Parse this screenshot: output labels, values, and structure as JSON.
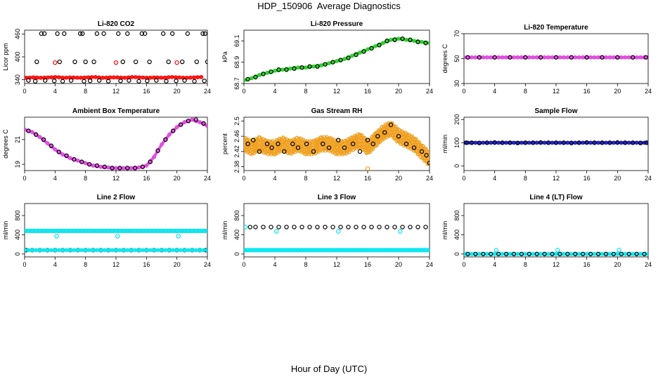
{
  "page": {
    "title": "HDP_150906  Average Diagnostics",
    "xlabel": "Hour of Day (UTC)"
  },
  "colors": {
    "black": "#000000",
    "red": "#ff0000",
    "green": "#22cc22",
    "magenta": "#e040e0",
    "orange": "#f0a020",
    "blue": "#1010c0",
    "cyan": "#00e5ee"
  },
  "chart_data": [
    {
      "type": "scatter",
      "title": "Li-820 CO2",
      "xlabel": "",
      "ylabel": "Licor ppm",
      "xlim": [
        0,
        24
      ],
      "ylim": [
        330,
        470
      ],
      "xticks": [
        0,
        4,
        8,
        12,
        16,
        20,
        24
      ],
      "yticks": [
        340,
        400,
        460
      ],
      "series": [
        {
          "color": "#ff0000",
          "x": [
            0.2,
            1.2,
            2.2,
            3.2,
            4.2,
            5.2,
            6.2,
            7.2,
            8.2,
            9.2,
            10.2,
            11.2,
            12.2,
            13.2,
            14.2,
            15.2,
            16.2,
            17.2,
            18.2,
            19.2,
            20.2,
            21.2,
            22.2,
            23.2
          ],
          "y": [
            345,
            346,
            345,
            346,
            347,
            345,
            346,
            345,
            346,
            347,
            345,
            346,
            346,
            345,
            347,
            346,
            345,
            346,
            345,
            347,
            346,
            345,
            346,
            347
          ],
          "line": true
        },
        {
          "color": "#ff0000",
          "x": [
            4.0,
            12.0,
            20.0
          ],
          "y": [
            385,
            385,
            385
          ]
        },
        {
          "color": "#000000",
          "x": [
            2.2,
            2.6,
            4.3,
            5.2,
            7.3,
            7.6,
            9.5,
            10.4,
            12.3,
            13.5,
            15.4,
            15.8,
            18.2,
            19.4,
            21.4,
            23.4,
            23.7
          ],
          "y": [
            461,
            461,
            461,
            461,
            461,
            461,
            461,
            461,
            461,
            461,
            461,
            461,
            461,
            461,
            461,
            461,
            461
          ]
        },
        {
          "color": "#000000",
          "x": [
            1.6,
            4.6,
            6.6,
            8.0,
            9.1,
            12.9,
            14.6,
            16.4,
            18.9,
            20.7,
            22.6,
            24.0
          ],
          "y": [
            387,
            387,
            387,
            387,
            387,
            387,
            387,
            387,
            387,
            387,
            387,
            387
          ]
        },
        {
          "color": "#000000",
          "x": [
            0.5,
            1.4,
            2.7,
            3.9,
            5.0,
            6.1,
            7.8,
            8.6,
            9.8,
            11.0,
            12.6,
            13.7,
            15.0,
            16.1,
            17.3,
            18.6,
            19.9,
            21.0,
            22.3,
            23.6
          ],
          "y": [
            338,
            336,
            338,
            337,
            336,
            338,
            336,
            337,
            338,
            336,
            337,
            338,
            336,
            337,
            338,
            336,
            337,
            338,
            336,
            337
          ]
        }
      ]
    },
    {
      "type": "scatter",
      "title": "Li-820 Pressure",
      "xlabel": "",
      "ylabel": "kPa",
      "xlim": [
        0,
        24
      ],
      "ylim": [
        68.7,
        69.2
      ],
      "xticks": [
        0,
        4,
        8,
        12,
        16,
        20,
        24
      ],
      "yticks": [
        68.7,
        68.9,
        69.1
      ],
      "series": [
        {
          "color": "#22cc22",
          "x": [
            0,
            1,
            2,
            3,
            4,
            5,
            6,
            7,
            8,
            9,
            10,
            11,
            12,
            13,
            14,
            15,
            16,
            17,
            18,
            19,
            20,
            21,
            22,
            23,
            24
          ],
          "y": [
            68.73,
            68.75,
            68.78,
            68.8,
            68.82,
            68.83,
            68.84,
            68.85,
            68.85,
            68.86,
            68.87,
            68.89,
            68.91,
            68.93,
            68.96,
            68.99,
            69.02,
            69.05,
            69.08,
            69.11,
            69.12,
            69.11,
            69.1,
            69.09,
            69.08
          ],
          "line": true
        },
        {
          "color": "#000000",
          "x": [
            0.5,
            1.5,
            2.5,
            3.5,
            4.5,
            5.5,
            6.5,
            7.5,
            8.5,
            9.5,
            10.5,
            11.5,
            12.5,
            13.5,
            14.5,
            15.5,
            16.5,
            17.5,
            18.5,
            19.5,
            20.5,
            21.5,
            22.5,
            23.5
          ],
          "y": [
            68.74,
            68.76,
            68.79,
            68.81,
            68.83,
            68.83,
            68.84,
            68.85,
            68.86,
            68.86,
            68.88,
            68.9,
            68.92,
            68.94,
            68.97,
            69.0,
            69.03,
            69.06,
            69.1,
            69.11,
            69.12,
            69.11,
            69.09,
            69.08
          ]
        }
      ]
    },
    {
      "type": "scatter",
      "title": "Li-820 Temperature",
      "xlabel": "",
      "ylabel": "degrees C",
      "xlim": [
        0,
        24
      ],
      "ylim": [
        30,
        70
      ],
      "xticks": [
        0,
        4,
        8,
        12,
        16,
        20,
        24
      ],
      "yticks": [
        30,
        50,
        70
      ],
      "series": [
        {
          "color": "#e040e0",
          "x": [
            0,
            24
          ],
          "y": [
            51,
            51
          ],
          "line": true
        },
        {
          "color": "#000000",
          "x": [
            0.5,
            2,
            4,
            6,
            8,
            10,
            12,
            14,
            16,
            18,
            20,
            22,
            23.7
          ],
          "y": [
            51,
            51,
            51,
            51,
            51,
            51,
            51,
            51,
            51,
            51,
            51,
            51,
            51
          ]
        }
      ]
    },
    {
      "type": "scatter",
      "title": "Ambient Box Temperature",
      "xlabel": "",
      "ylabel": "degrees C",
      "xlim": [
        0,
        24
      ],
      "ylim": [
        18.5,
        22.8
      ],
      "xticks": [
        0,
        4,
        8,
        12,
        16,
        20,
        24
      ],
      "yticks": [
        19,
        21
      ],
      "series": [
        {
          "color": "#e040e0",
          "x": [
            0,
            1,
            2,
            3,
            4,
            5,
            6,
            7,
            8,
            9,
            10,
            11,
            12,
            13,
            14,
            15,
            16,
            17,
            18,
            19,
            20,
            21,
            22,
            23,
            24
          ],
          "y": [
            21.8,
            21.6,
            21.2,
            20.7,
            20.2,
            19.8,
            19.5,
            19.3,
            19.1,
            18.9,
            18.8,
            18.75,
            18.7,
            18.7,
            18.7,
            18.75,
            18.9,
            19.6,
            20.6,
            21.4,
            22.0,
            22.4,
            22.6,
            22.4,
            22.1
          ],
          "line": true
        },
        {
          "color": "#000000",
          "x": [
            0.5,
            1.5,
            2.5,
            3.5,
            4.5,
            5.5,
            6.5,
            7.5,
            8.5,
            9.5,
            10.5,
            11.5,
            12.5,
            13.5,
            14.5,
            15.5,
            16.5,
            17.5,
            18.5,
            19.5,
            20.5,
            21.5,
            22.5,
            23.5
          ],
          "y": [
            21.7,
            21.4,
            21.0,
            20.5,
            20.0,
            19.7,
            19.4,
            19.2,
            19.0,
            18.9,
            18.8,
            18.7,
            18.7,
            18.7,
            18.7,
            18.8,
            19.2,
            20.1,
            21.0,
            21.7,
            22.2,
            22.5,
            22.6,
            22.3
          ]
        }
      ]
    },
    {
      "type": "scatter",
      "title": "Gas Stream RH",
      "xlabel": "",
      "ylabel": "percent",
      "xlim": [
        0,
        24
      ],
      "ylim": [
        2.37,
        2.51
      ],
      "xticks": [
        0,
        4,
        8,
        12,
        16,
        20,
        24
      ],
      "yticks": [
        2.38,
        2.42,
        2.46,
        2.5
      ],
      "series": [
        {
          "color": "#f0a020",
          "band": true,
          "x": [
            0,
            1,
            2,
            3,
            4,
            5,
            6,
            7,
            8,
            9,
            10,
            11,
            12,
            13,
            14,
            15,
            16,
            17,
            18,
            19,
            20,
            21,
            22,
            23,
            24
          ],
          "y": [
            2.44,
            2.43,
            2.44,
            2.43,
            2.43,
            2.44,
            2.43,
            2.44,
            2.43,
            2.43,
            2.44,
            2.44,
            2.43,
            2.43,
            2.44,
            2.45,
            2.43,
            2.45,
            2.47,
            2.48,
            2.46,
            2.45,
            2.44,
            2.42,
            2.4
          ],
          "spread": 0.018
        },
        {
          "color": "#f0a020",
          "x": [
            16.0
          ],
          "y": [
            2.375
          ]
        },
        {
          "color": "#000000",
          "x": [
            0.5,
            1.2,
            2.0,
            3.0,
            3.6,
            4.4,
            5.2,
            6.3,
            7.0,
            8.1,
            9.0,
            10.2,
            11.0,
            12.2,
            13.0,
            14.1,
            15.0,
            16.0,
            16.7,
            17.3,
            18.2,
            19.0,
            20.0,
            21.0,
            22.0,
            23.0,
            23.6,
            24.0
          ],
          "y": [
            2.44,
            2.45,
            2.42,
            2.44,
            2.43,
            2.44,
            2.42,
            2.44,
            2.43,
            2.44,
            2.42,
            2.44,
            2.43,
            2.45,
            2.43,
            2.44,
            2.42,
            2.45,
            2.44,
            2.46,
            2.47,
            2.49,
            2.46,
            2.44,
            2.43,
            2.42,
            2.41,
            2.39
          ]
        }
      ]
    },
    {
      "type": "scatter",
      "title": "Sample Flow",
      "xlabel": "",
      "ylabel": "ml/min",
      "xlim": [
        0,
        24
      ],
      "ylim": [
        -20,
        210
      ],
      "xticks": [
        0,
        4,
        8,
        12,
        16,
        20,
        24
      ],
      "yticks": [
        0,
        100,
        200
      ],
      "series": [
        {
          "color": "#1010c0",
          "x": [
            0,
            24
          ],
          "y": [
            100,
            100
          ],
          "line": true
        },
        {
          "color": "#000000",
          "x": [
            0.3,
            1,
            2,
            3,
            4,
            5,
            6,
            7,
            8,
            9,
            10,
            11,
            12,
            13,
            14,
            15,
            16,
            17,
            18,
            19,
            20,
            21,
            22,
            23,
            23.8
          ],
          "y": [
            100,
            100,
            99,
            100,
            101,
            100,
            100,
            99,
            100,
            100,
            101,
            100,
            100,
            100,
            99,
            100,
            101,
            100,
            100,
            100,
            101,
            100,
            100,
            99,
            100
          ]
        }
      ]
    },
    {
      "type": "scatter",
      "title": "Line 2 Flow",
      "xlabel": "",
      "ylabel": "ml/min",
      "xlim": [
        0,
        24
      ],
      "ylim": [
        -60,
        1050
      ],
      "xticks": [
        0,
        4,
        8,
        12,
        16,
        20,
        24
      ],
      "yticks": [
        0,
        400,
        800
      ],
      "series": [
        {
          "color": "#00e5ee",
          "x": [
            0,
            24
          ],
          "y": [
            480,
            480
          ],
          "line": true,
          "thick": true
        },
        {
          "color": "#00e5ee",
          "x": [
            4.2,
            12.2,
            20.2
          ],
          "y": [
            370,
            370,
            370
          ]
        },
        {
          "color": "#000000",
          "x": [
            0.2,
            1,
            2,
            3,
            4,
            5,
            6,
            7,
            8,
            9,
            10,
            11,
            12,
            13,
            14,
            15,
            16,
            17,
            18,
            19,
            20,
            21,
            22,
            23,
            23.8
          ],
          "y": [
            80,
            80,
            80,
            80,
            80,
            80,
            80,
            80,
            80,
            80,
            80,
            80,
            80,
            80,
            80,
            80,
            80,
            80,
            80,
            80,
            80,
            80,
            80,
            80,
            80
          ]
        },
        {
          "color": "#00e5ee",
          "x": [
            0,
            24
          ],
          "y": [
            80,
            80
          ],
          "line": true
        }
      ]
    },
    {
      "type": "scatter",
      "title": "Line 3 Flow",
      "xlabel": "",
      "ylabel": "ml/min",
      "xlim": [
        0,
        24
      ],
      "ylim": [
        -60,
        1050
      ],
      "xticks": [
        0,
        4,
        8,
        12,
        16,
        20,
        24
      ],
      "yticks": [
        0,
        400,
        800
      ],
      "series": [
        {
          "color": "#00e5ee",
          "x": [
            0,
            24
          ],
          "y": [
            80,
            80
          ],
          "line": true,
          "thick": true
        },
        {
          "color": "#00e5ee",
          "x": [
            0.2,
            4.2,
            12.2,
            20.2
          ],
          "y": [
            560,
            470,
            470,
            470
          ]
        },
        {
          "color": "#000000",
          "x": [
            0.8,
            1.5,
            2.5,
            3.5,
            4.5,
            5.5,
            6.5,
            7.5,
            8.5,
            9.5,
            10.5,
            11.5,
            12.5,
            13.5,
            14.5,
            15.5,
            16.5,
            17.5,
            18.5,
            19.5,
            20.5,
            21.5,
            22.5,
            23.5
          ],
          "y": [
            560,
            560,
            560,
            560,
            560,
            560,
            560,
            560,
            560,
            560,
            560,
            560,
            560,
            560,
            560,
            560,
            560,
            560,
            560,
            560,
            560,
            560,
            560,
            560
          ]
        }
      ]
    },
    {
      "type": "scatter",
      "title": "Line 4 (LT) Flow",
      "xlabel": "",
      "ylabel": "ml/min",
      "xlim": [
        0,
        24
      ],
      "ylim": [
        -60,
        1050
      ],
      "xticks": [
        0,
        4,
        8,
        12,
        16,
        20,
        24
      ],
      "yticks": [
        0,
        400,
        800
      ],
      "series": [
        {
          "color": "#00e5ee",
          "x": [
            0,
            24
          ],
          "y": [
            0,
            0
          ],
          "line": true
        },
        {
          "color": "#00e5ee",
          "x": [
            0.0,
            4.2,
            12.2,
            20.2
          ],
          "y": [
            0,
            80,
            80,
            80
          ]
        },
        {
          "color": "#000000",
          "x": [
            0.5,
            1.5,
            2.5,
            3.5,
            4.5,
            5.5,
            6.5,
            7.5,
            8.5,
            9.5,
            10.5,
            11.5,
            12.5,
            13.5,
            14.5,
            15.5,
            16.5,
            17.5,
            18.5,
            19.5,
            20.5,
            21.5,
            22.5,
            23.5
          ],
          "y": [
            0,
            0,
            0,
            0,
            0,
            0,
            0,
            0,
            0,
            0,
            0,
            0,
            0,
            0,
            0,
            0,
            0,
            0,
            0,
            0,
            0,
            0,
            0,
            0
          ]
        }
      ]
    }
  ]
}
